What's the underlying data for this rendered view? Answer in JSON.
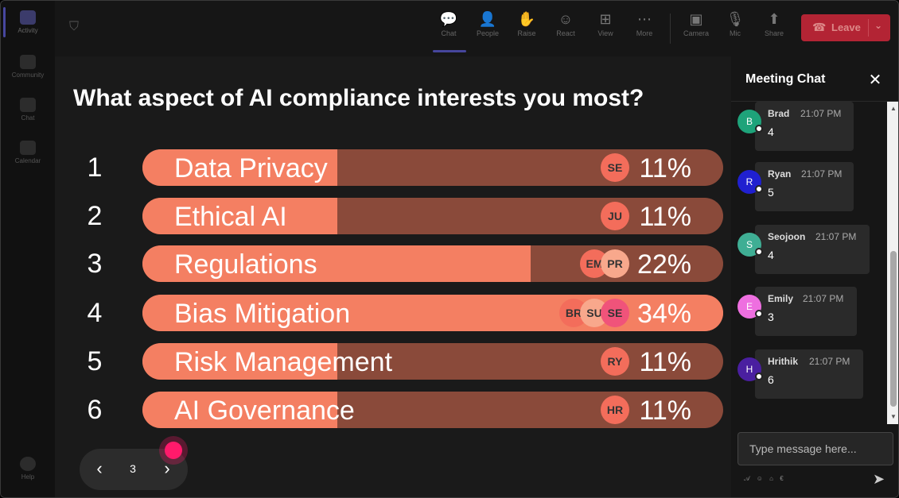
{
  "rail": {
    "items": [
      {
        "label": "Activity"
      },
      {
        "label": "Community"
      },
      {
        "label": "Chat"
      },
      {
        "label": "Calendar"
      }
    ],
    "help_label": "Help"
  },
  "toolbar": {
    "buttons": [
      {
        "label": "Chat",
        "icon": "chat-icon",
        "glyph": "💬"
      },
      {
        "label": "People",
        "icon": "people-icon",
        "glyph": "👤"
      },
      {
        "label": "Raise",
        "icon": "hand-icon",
        "glyph": "✋"
      },
      {
        "label": "React",
        "icon": "smile-icon",
        "glyph": "☺"
      },
      {
        "label": "View",
        "icon": "grid-icon",
        "glyph": "⊞"
      },
      {
        "label": "More",
        "icon": "more-icon",
        "glyph": "⋯"
      },
      {
        "label": "Camera",
        "icon": "camera-icon",
        "glyph": "▣"
      },
      {
        "label": "Mic",
        "icon": "mic-icon",
        "glyph": "🎙"
      },
      {
        "label": "Share",
        "icon": "share-icon",
        "glyph": "⬆"
      }
    ],
    "leave_label": "Leave"
  },
  "poll": {
    "question": "What aspect of AI compliance interests you most?",
    "options": [
      {
        "number": "1",
        "label": "Data Privacy",
        "percent_label": "11%",
        "percent": 11,
        "voters": [
          "SE"
        ]
      },
      {
        "number": "2",
        "label": "Ethical AI",
        "percent_label": "11%",
        "percent": 11,
        "voters": [
          "JU"
        ]
      },
      {
        "number": "3",
        "label": "Regulations",
        "percent_label": "22%",
        "percent": 22,
        "voters": [
          "EM",
          "PR"
        ]
      },
      {
        "number": "4",
        "label": "Bias Mitigation",
        "percent_label": "34%",
        "percent": 34,
        "voters": [
          "BR",
          "SU",
          "SE"
        ]
      },
      {
        "number": "5",
        "label": "Risk Management",
        "percent_label": "11%",
        "percent": 11,
        "voters": [
          "RY"
        ]
      },
      {
        "number": "6",
        "label": "AI Governance",
        "percent_label": "11%",
        "percent": 11,
        "voters": [
          "HR"
        ]
      }
    ],
    "page": "3"
  },
  "colors": {
    "bar_fill": "#f47f62",
    "bar_track": "#8a4a3a",
    "leave": "#b32434",
    "pointer": "#ff1a6b"
  },
  "chat": {
    "title": "Meeting Chat",
    "messages": [
      {
        "initial": "B",
        "name": "Brad",
        "time": "21:07 PM",
        "text": "4",
        "color": "#1ea37a"
      },
      {
        "initial": "R",
        "name": "Ryan",
        "time": "21:07 PM",
        "text": "5",
        "color": "#2020d0"
      },
      {
        "initial": "S",
        "name": "Seojoon",
        "time": "21:07 PM",
        "text": "4",
        "color": "#3fae94"
      },
      {
        "initial": "E",
        "name": "Emily",
        "time": "21:07 PM",
        "text": "3",
        "color": "#ee6fe0"
      },
      {
        "initial": "H",
        "name": "Hrithik",
        "time": "21:07 PM",
        "text": "6",
        "color": "#4a1fa0"
      }
    ],
    "input_placeholder": "Type message here..."
  }
}
